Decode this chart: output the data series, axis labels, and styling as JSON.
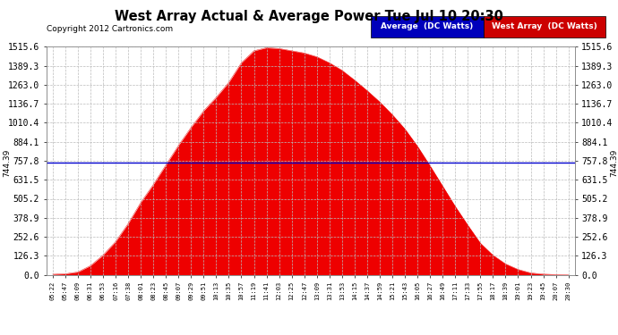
{
  "title": "West Array Actual & Average Power Tue Jul 10 20:30",
  "copyright": "Copyright 2012 Cartronics.com",
  "legend_labels": [
    "Average  (DC Watts)",
    "West Array  (DC Watts)"
  ],
  "legend_colors": [
    "#0000cc",
    "#dd0000"
  ],
  "average_value": 744.39,
  "y_ticks": [
    0.0,
    126.3,
    252.6,
    378.9,
    505.2,
    631.5,
    757.8,
    884.1,
    1010.4,
    1136.7,
    1263.0,
    1389.3,
    1515.6
  ],
  "ylim": [
    0,
    1515.6
  ],
  "fill_color": "#ee0000",
  "avg_line_color": "#0000cc",
  "bg_color": "#ffffff",
  "grid_color": "#bbbbbb",
  "x_labels": [
    "05:22",
    "05:47",
    "06:09",
    "06:31",
    "06:53",
    "07:16",
    "07:38",
    "08:01",
    "08:23",
    "08:45",
    "09:07",
    "09:29",
    "09:51",
    "10:13",
    "10:35",
    "10:57",
    "11:19",
    "11:41",
    "12:03",
    "12:25",
    "12:47",
    "13:09",
    "13:31",
    "13:53",
    "14:15",
    "14:37",
    "14:59",
    "15:21",
    "15:43",
    "16:05",
    "16:27",
    "16:49",
    "17:11",
    "17:33",
    "17:55",
    "18:17",
    "18:39",
    "19:01",
    "19:23",
    "19:45",
    "20:07",
    "20:30"
  ],
  "power_values": [
    3,
    6,
    18,
    60,
    130,
    220,
    340,
    480,
    600,
    730,
    860,
    980,
    1090,
    1180,
    1280,
    1410,
    1490,
    1510,
    1505,
    1490,
    1475,
    1450,
    1410,
    1360,
    1295,
    1225,
    1150,
    1065,
    970,
    855,
    725,
    590,
    455,
    330,
    210,
    130,
    72,
    35,
    12,
    4,
    1,
    0
  ]
}
